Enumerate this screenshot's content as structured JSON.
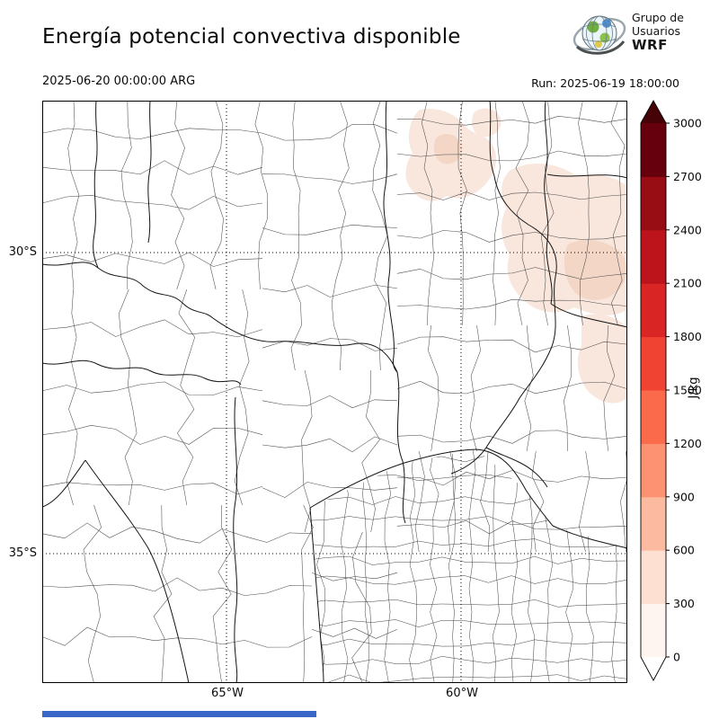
{
  "header": {
    "title": "Energía potencial convectiva disponible",
    "valid_time": "2025-06-20 00:00:00 ARG",
    "run_label": "Run: 2025-06-19 18:00:00",
    "logo": {
      "line1": "Grupo de",
      "line2": "Usuarios",
      "line3": "WRF"
    }
  },
  "map": {
    "lat_labels": [
      "30°S",
      "35°S"
    ],
    "lon_labels": [
      "65°W",
      "60°W"
    ],
    "border_color": "#000000",
    "boundary_color": "#4d4d4d"
  },
  "footer": {
    "bar_color": "#3a66c8"
  },
  "chart_data": {
    "type": "heatmap",
    "variable": "CAPE (Energía potencial convectiva disponible)",
    "title": "Energía potencial convectiva disponible",
    "units": "J/kg",
    "valid_time": "2025-06-20 00:00:00 ARG",
    "model_run": "Run: 2025-06-19 18:00:00",
    "extent": {
      "lat_gridlines": [
        "30°S",
        "35°S"
      ],
      "lon_gridlines": [
        "65°W",
        "60°W"
      ]
    },
    "colorbar": {
      "label": "J/kg",
      "ticks": [
        "0",
        "300",
        "600",
        "900",
        "1200",
        "1500",
        "1800",
        "2100",
        "2400",
        "2700",
        "3000"
      ],
      "segment_colors": [
        "#fff5f0",
        "#fee0d2",
        "#fcbba1",
        "#fc9272",
        "#fb6a4a",
        "#f14331",
        "#d92523",
        "#bc141a",
        "#980c13",
        "#67000d"
      ],
      "over_color": "#450207",
      "under_color": "#ffffff"
    },
    "shading": {
      "low_color": "#f9e7dd",
      "mid_color": "#f3d6c5",
      "description": "CAPE near 0 over most of the domain; pale 0–600 J/kg patches over the northeastern sector"
    }
  }
}
